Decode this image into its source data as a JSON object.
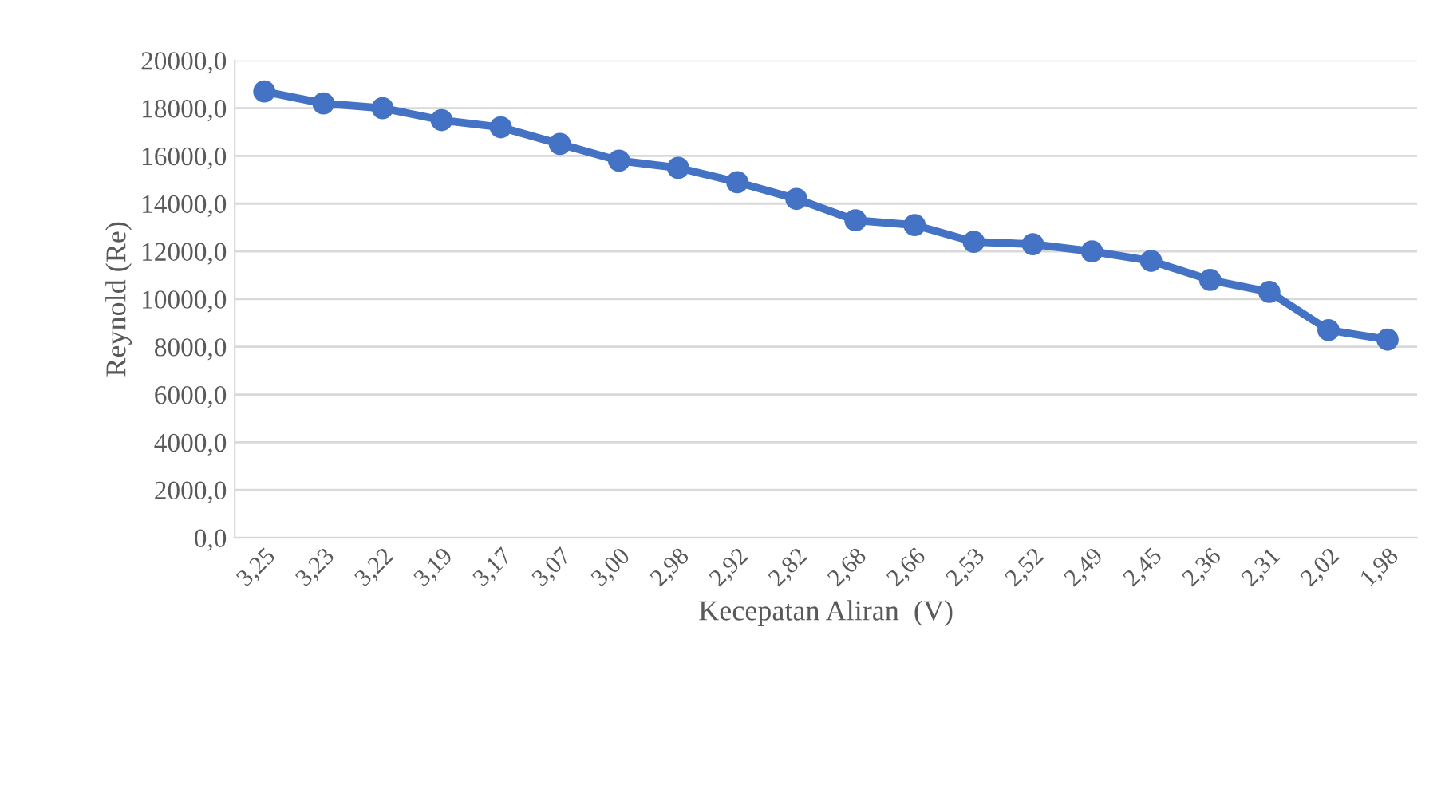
{
  "chart_data": {
    "type": "line",
    "xlabel": "Kecepatan Aliran  (V)",
    "ylabel": "Reynold (Re)",
    "categories": [
      "3,25",
      "3,23",
      "3,22",
      "3,19",
      "3,17",
      "3,07",
      "3,00",
      "2,98",
      "2,92",
      "2,82",
      "2,68",
      "2,66",
      "2,53",
      "2,52",
      "2,49",
      "2,45",
      "2,36",
      "2,31",
      "2,02",
      "1,98"
    ],
    "series": [
      {
        "color": "#4472c4",
        "values": [
          18700,
          18200,
          18000,
          17500,
          17200,
          16500,
          15800,
          15500,
          14900,
          14200,
          13300,
          13100,
          12400,
          12300,
          12000,
          11600,
          10800,
          10300,
          8700,
          8300
        ]
      }
    ],
    "ylim": [
      0,
      20000
    ],
    "yticks": [
      {
        "value": 0,
        "label": "0,0"
      },
      {
        "value": 2000,
        "label": "2000,0"
      },
      {
        "value": 4000,
        "label": "4000,0"
      },
      {
        "value": 6000,
        "label": "6000,0"
      },
      {
        "value": 8000,
        "label": "8000,0"
      },
      {
        "value": 10000,
        "label": "10000,0"
      },
      {
        "value": 12000,
        "label": "12000,0"
      },
      {
        "value": 14000,
        "label": "14000,0"
      },
      {
        "value": 16000,
        "label": "16000,0"
      },
      {
        "value": 18000,
        "label": "18000,0"
      },
      {
        "value": 20000,
        "label": "20000,0"
      }
    ],
    "grid": "y",
    "marker": "circle",
    "line_style": "solid"
  }
}
